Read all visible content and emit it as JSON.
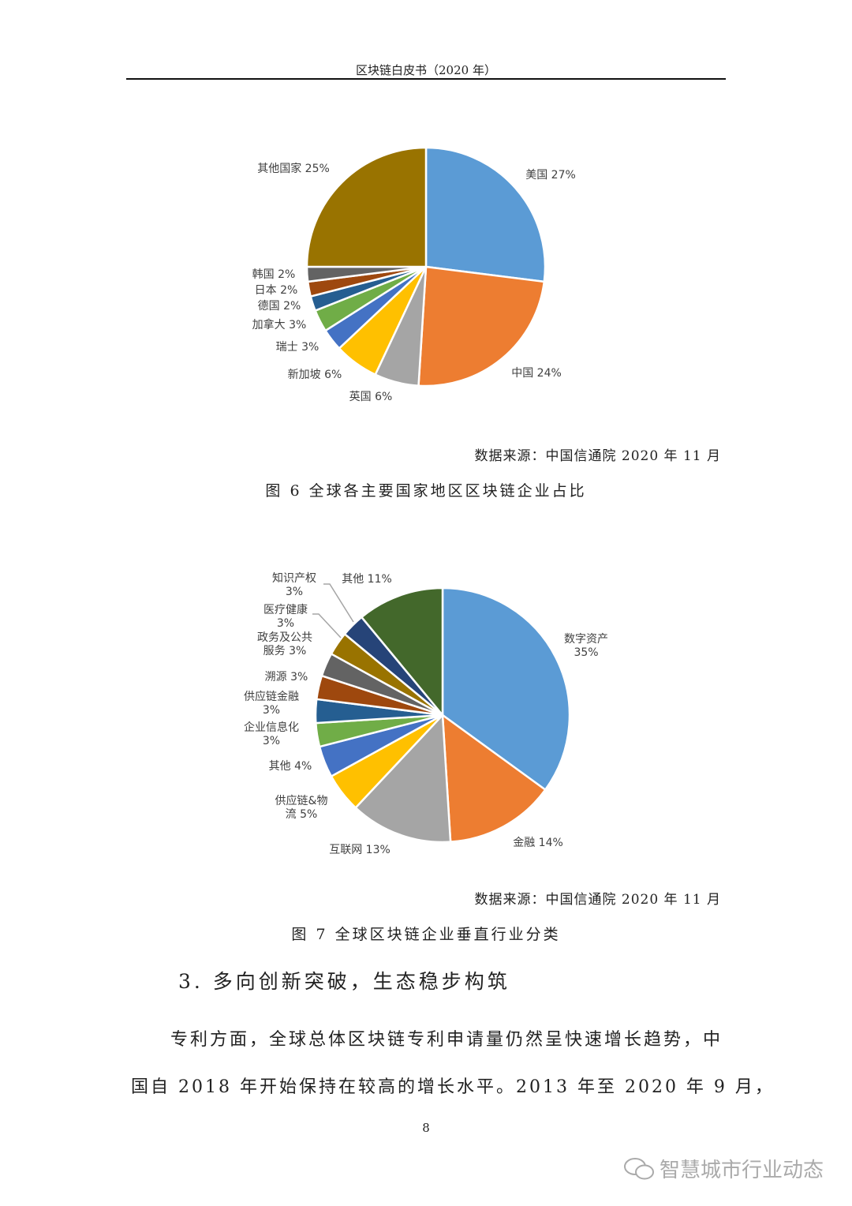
{
  "header": {
    "title": "区块链白皮书（2020 年）"
  },
  "figures": [
    {
      "source": "数据来源：中国信通院  2020 年 11 月",
      "caption": "图  6  全球各主要国家地区区块链企业占比"
    },
    {
      "source": "数据来源：中国信通院  2020 年 11 月",
      "caption": "图  7  全球区块链企业垂直行业分类"
    }
  ],
  "chart_data": [
    {
      "type": "pie",
      "start": "12 o'clock, clockwise",
      "labels": [
        "美国 27%",
        "中国 24%",
        "英国 6%",
        "新加坡 6%",
        "瑞士 3%",
        "加拿大 3%",
        "德国 2%",
        "日本 2%",
        "韩国 2%",
        "其他国家 25%"
      ],
      "categories": [
        "美国",
        "中国",
        "英国",
        "新加坡",
        "瑞士",
        "加拿大",
        "德国",
        "日本",
        "韩国",
        "其他国家"
      ],
      "values": [
        27,
        24,
        6,
        6,
        3,
        3,
        2,
        2,
        2,
        25
      ],
      "colors": [
        "#5b9bd5",
        "#ed7d31",
        "#a5a5a5",
        "#ffc000",
        "#4472c4",
        "#70ad47",
        "#255e91",
        "#9e480e",
        "#636363",
        "#997300"
      ]
    },
    {
      "type": "pie",
      "start": "12 o'clock, clockwise",
      "labels": [
        "数字资产\n35%",
        "金融 14%",
        "互联网 13%",
        "供应链&物\n流 5%",
        "其他 4%",
        "企业信息化\n3%",
        "供应链金融\n3%",
        "溯源 3%",
        "政务及公共\n服务 3%",
        "医疗健康\n3%",
        "知识产权\n3%",
        "其他 11%"
      ],
      "categories": [
        "数字资产",
        "金融",
        "互联网",
        "供应链&物流",
        "其他",
        "企业信息化",
        "供应链金融",
        "溯源",
        "政务及公共服务",
        "医疗健康",
        "知识产权",
        "其他"
      ],
      "values": [
        35,
        14,
        13,
        5,
        4,
        3,
        3,
        3,
        3,
        3,
        3,
        11
      ],
      "colors": [
        "#5b9bd5",
        "#ed7d31",
        "#a5a5a5",
        "#ffc000",
        "#4472c4",
        "#70ad47",
        "#255e91",
        "#9e480e",
        "#636363",
        "#997300",
        "#264478",
        "#43682b"
      ]
    }
  ],
  "section": {
    "heading": "3.   多向创新突破，生态稳步构筑"
  },
  "body": {
    "line1": "专利方面，全球总体区块链专利申请量仍然呈快速增长趋势，中",
    "line2": "国自 2018 年开始保持在较高的增长水平。2013 年至 2020 年 9 月，"
  },
  "page_number": "8",
  "watermark": {
    "text": "智慧城市行业动态",
    "icon": "wechat-icon"
  }
}
